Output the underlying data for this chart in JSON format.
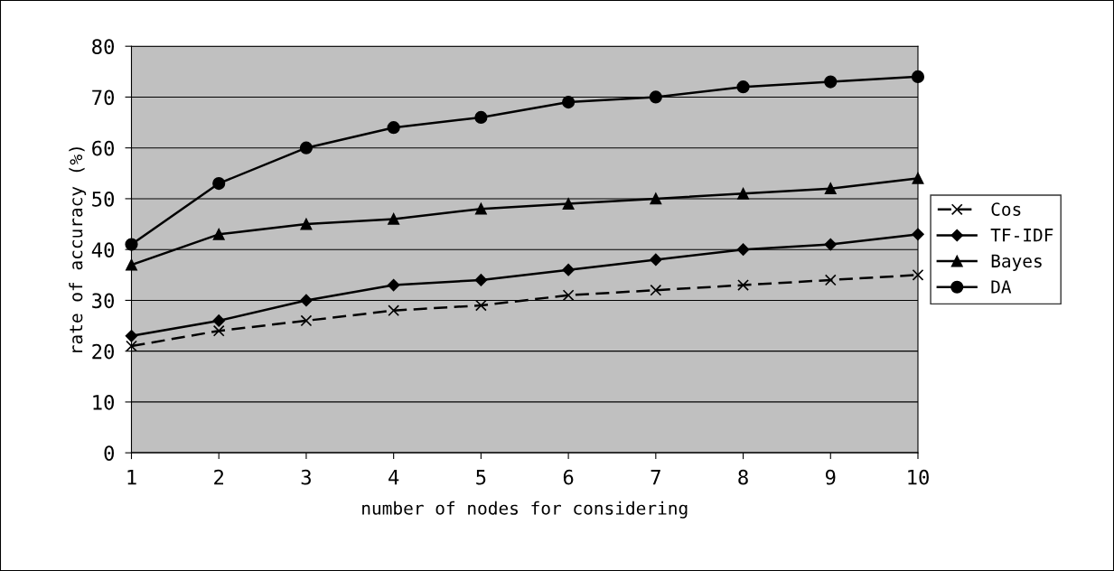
{
  "chart_data": {
    "type": "line",
    "xlabel": "number of nodes for considering",
    "ylabel": "rate of accuracy (%)",
    "categories": [
      "1",
      "2",
      "3",
      "4",
      "5",
      "6",
      "7",
      "8",
      "9",
      "10"
    ],
    "ylim": [
      0,
      80
    ],
    "yticks": [
      0,
      10,
      20,
      30,
      40,
      50,
      60,
      70,
      80
    ],
    "grid": "y",
    "legend": "right",
    "series": [
      {
        "name": "Cos",
        "color": "#000000",
        "marker": "cross",
        "line_style": "dashed",
        "values": [
          21,
          24,
          26,
          28,
          29,
          31,
          32,
          33,
          34,
          35
        ]
      },
      {
        "name": "TF-IDF",
        "color": "#000000",
        "marker": "diamond",
        "line_style": "solid",
        "values": [
          23,
          26,
          30,
          33,
          34,
          36,
          38,
          40,
          41,
          43
        ]
      },
      {
        "name": "Bayes",
        "color": "#000000",
        "marker": "triangle",
        "line_style": "solid",
        "values": [
          37,
          43,
          45,
          46,
          48,
          49,
          50,
          51,
          52,
          54
        ]
      },
      {
        "name": "DA",
        "color": "#000000",
        "marker": "circle",
        "line_style": "solid",
        "values": [
          41,
          53,
          60,
          64,
          66,
          69,
          70,
          72,
          73,
          74
        ]
      }
    ]
  }
}
